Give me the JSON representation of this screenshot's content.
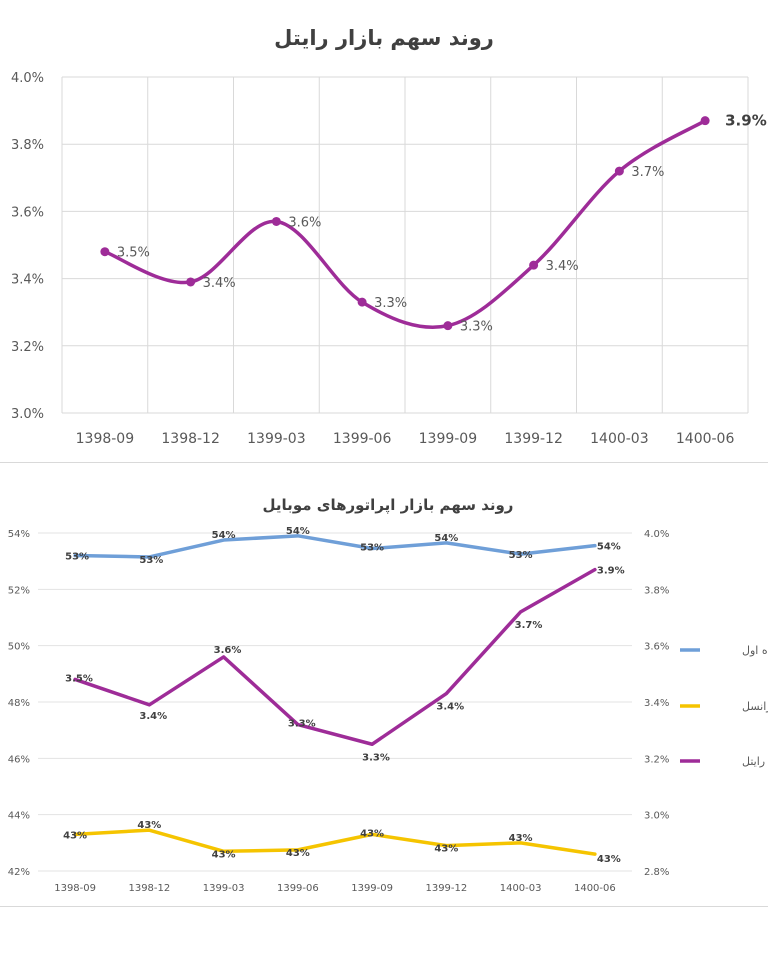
{
  "chart_data": [
    {
      "type": "line",
      "title": "روند سهم بازار رایتل",
      "categories": [
        "1398-09",
        "1398-12",
        "1399-03",
        "1399-06",
        "1399-09",
        "1399-12",
        "1400-03",
        "1400-06"
      ],
      "series": [
        {
          "values": [
            3.48,
            3.39,
            3.57,
            3.33,
            3.26,
            3.44,
            3.72,
            3.87
          ],
          "data_labels": [
            "3.5%",
            "3.4%",
            "3.6%",
            "3.3%",
            "3.3%",
            "3.4%",
            "3.7%",
            "3.9%"
          ],
          "color": "#9e2c98"
        }
      ],
      "ylim": [
        3.0,
        4.0
      ],
      "yticks": [
        "3.0%",
        "3.2%",
        "3.4%",
        "3.6%",
        "3.8%",
        "4.0%"
      ],
      "smooth": true,
      "grid": true
    },
    {
      "type": "line",
      "title": "روند سهم بازار اپراتورهای موبایل",
      "categories": [
        "1398-09",
        "1398-12",
        "1399-03",
        "1399-06",
        "1399-09",
        "1399-12",
        "1400-03",
        "1400-06"
      ],
      "left_axis": {
        "ylim": [
          42,
          54
        ],
        "yticks": [
          "42%",
          "44%",
          "46%",
          "48%",
          "50%",
          "52%",
          "54%"
        ]
      },
      "right_axis": {
        "ylim": [
          2.8,
          4.0
        ],
        "yticks": [
          "2.8%",
          "3.0%",
          "3.2%",
          "3.4%",
          "3.6%",
          "3.8%",
          "4.0%"
        ]
      },
      "series": [
        {
          "name": "همراه اول",
          "axis": "left",
          "color": "#6f9fd8",
          "values": [
            53.2,
            53.15,
            53.75,
            53.9,
            53.45,
            53.65,
            53.25,
            53.55
          ],
          "data_labels": [
            "53%",
            "53%",
            "54%",
            "54%",
            "53%",
            "54%",
            "53%",
            "54%"
          ]
        },
        {
          "name": "ایرانسل",
          "axis": "left",
          "color": "#f5c400",
          "values": [
            43.3,
            43.45,
            42.7,
            42.75,
            43.3,
            42.9,
            43.0,
            42.6
          ],
          "data_labels": [
            "43%",
            "43%",
            "43%",
            "43%",
            "43%",
            "43%",
            "43%",
            "43%"
          ]
        },
        {
          "name": "رایتل",
          "axis": "right",
          "color": "#9e2c98",
          "values": [
            3.48,
            3.39,
            3.56,
            3.32,
            3.25,
            3.43,
            3.72,
            3.87
          ],
          "data_labels": [
            "3.5%",
            "3.4%",
            "3.6%",
            "3.3%",
            "3.3%",
            "3.4%",
            "3.7%",
            "3.9%"
          ]
        }
      ],
      "legend": "right",
      "grid": true
    }
  ]
}
